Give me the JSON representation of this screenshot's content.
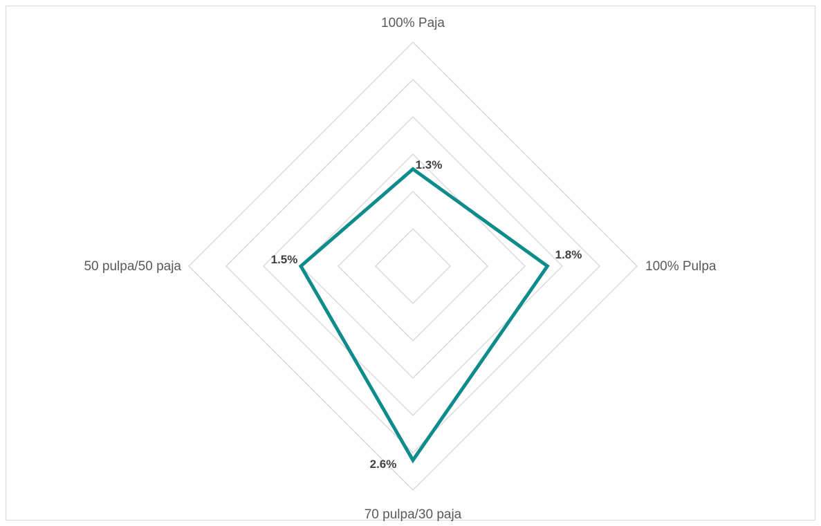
{
  "chart_data": {
    "type": "radar",
    "title": "",
    "categories": [
      "100% Paja",
      "100% Pulpa",
      "70 pulpa/30 paja",
      "50 pulpa/50 paja"
    ],
    "series": [
      {
        "values": [
          1.3,
          1.8,
          2.6,
          1.5
        ],
        "labels": [
          "1.3%",
          "1.8%",
          "2.6%",
          "1.5%"
        ],
        "color": "#0e8c8c"
      }
    ],
    "rlim": [
      0,
      3.0
    ],
    "gridlines": [
      0.5,
      1.0,
      1.5,
      2.0,
      2.5,
      3.0
    ],
    "grid_color": "#d9d9d9",
    "legend": "none"
  }
}
